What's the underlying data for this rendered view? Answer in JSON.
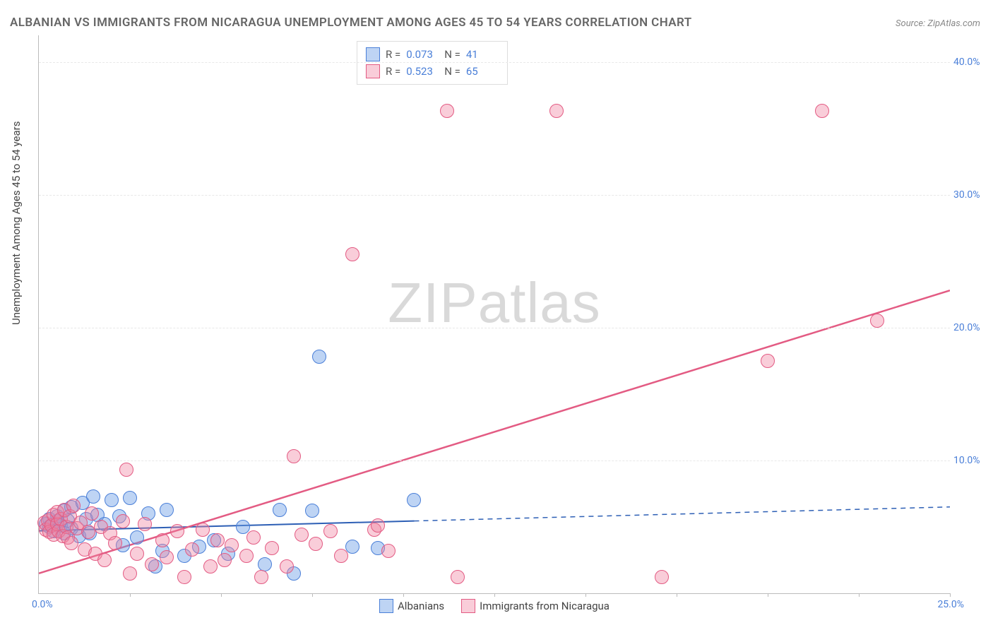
{
  "title": "ALBANIAN VS IMMIGRANTS FROM NICARAGUA UNEMPLOYMENT AMONG AGES 45 TO 54 YEARS CORRELATION CHART",
  "source": "Source: ZipAtlas.com",
  "ylabel": "Unemployment Among Ages 45 to 54 years",
  "watermark": "ZIPatlas",
  "chart": {
    "type": "scatter",
    "xlim": [
      0,
      25
    ],
    "ylim": [
      0,
      42
    ],
    "yticks": [
      10,
      20,
      30,
      40
    ],
    "ytick_labels": [
      "10.0%",
      "20.0%",
      "30.0%",
      "40.0%"
    ],
    "xticks": [
      2.5,
      5,
      7.5,
      10,
      12.5,
      15,
      17.5,
      20,
      22.5,
      25
    ],
    "x_origin_label": "0.0%",
    "x_max_label": "25.0%",
    "grid_color": "#e8e8e8",
    "axis_color": "#bbbbbb",
    "tick_label_color": "#4a7fd8",
    "background_color": "#ffffff"
  },
  "series": [
    {
      "name": "Albanians",
      "fill": "rgba(110,160,230,0.45)",
      "stroke": "#4a7fd8",
      "R": "0.073",
      "N": "41",
      "trend": {
        "y_at_x0": 4.7,
        "y_at_xmax": 6.5,
        "solid_until_x": 10.3,
        "color": "#2d5fb5",
        "width": 2
      },
      "marker_r": 9,
      "points": [
        [
          0.2,
          5.2
        ],
        [
          0.3,
          5.0
        ],
        [
          0.3,
          5.6
        ],
        [
          0.4,
          4.7
        ],
        [
          0.5,
          5.4
        ],
        [
          0.5,
          5.8
        ],
        [
          0.6,
          5.1
        ],
        [
          0.7,
          6.2
        ],
        [
          0.7,
          4.5
        ],
        [
          0.8,
          5.5
        ],
        [
          0.9,
          6.5
        ],
        [
          0.9,
          4.9
        ],
        [
          1.1,
          4.3
        ],
        [
          1.2,
          6.8
        ],
        [
          1.3,
          5.6
        ],
        [
          1.4,
          4.5
        ],
        [
          1.5,
          7.3
        ],
        [
          1.6,
          5.9
        ],
        [
          1.8,
          5.2
        ],
        [
          2.0,
          7.0
        ],
        [
          2.2,
          5.8
        ],
        [
          2.3,
          3.6
        ],
        [
          2.5,
          7.2
        ],
        [
          2.7,
          4.2
        ],
        [
          3.0,
          6.0
        ],
        [
          3.2,
          2.0
        ],
        [
          3.4,
          3.2
        ],
        [
          3.5,
          6.3
        ],
        [
          4.0,
          2.8
        ],
        [
          4.4,
          3.5
        ],
        [
          4.8,
          4.0
        ],
        [
          5.2,
          3.0
        ],
        [
          5.6,
          5.0
        ],
        [
          6.2,
          2.2
        ],
        [
          6.6,
          6.3
        ],
        [
          7.0,
          1.5
        ],
        [
          7.5,
          6.2
        ],
        [
          7.7,
          17.8
        ],
        [
          8.6,
          3.5
        ],
        [
          9.3,
          3.4
        ],
        [
          10.3,
          7.0
        ]
      ]
    },
    {
      "name": "Immigrants from Nicaragua",
      "fill": "rgba(240,130,160,0.40)",
      "stroke": "#e35b83",
      "R": "0.523",
      "N": "65",
      "trend": {
        "y_at_x0": 1.5,
        "y_at_xmax": 22.8,
        "solid_until_x": 25,
        "color": "#e35b83",
        "width": 2.5
      },
      "marker_r": 9,
      "points": [
        [
          0.15,
          5.3
        ],
        [
          0.2,
          4.8
        ],
        [
          0.25,
          5.5
        ],
        [
          0.3,
          4.6
        ],
        [
          0.35,
          5.1
        ],
        [
          0.4,
          5.9
        ],
        [
          0.4,
          4.4
        ],
        [
          0.5,
          5.2
        ],
        [
          0.5,
          6.1
        ],
        [
          0.55,
          4.7
        ],
        [
          0.6,
          5.6
        ],
        [
          0.65,
          4.3
        ],
        [
          0.7,
          6.3
        ],
        [
          0.75,
          5.0
        ],
        [
          0.8,
          4.2
        ],
        [
          0.85,
          5.8
        ],
        [
          0.9,
          3.8
        ],
        [
          0.95,
          6.6
        ],
        [
          1.05,
          4.9
        ],
        [
          1.15,
          5.3
        ],
        [
          1.25,
          3.3
        ],
        [
          1.35,
          4.6
        ],
        [
          1.45,
          6.0
        ],
        [
          1.55,
          3.0
        ],
        [
          1.7,
          5.0
        ],
        [
          1.8,
          2.5
        ],
        [
          1.95,
          4.5
        ],
        [
          2.1,
          3.8
        ],
        [
          2.3,
          5.4
        ],
        [
          2.4,
          9.3
        ],
        [
          2.5,
          1.5
        ],
        [
          2.7,
          3.0
        ],
        [
          2.9,
          5.2
        ],
        [
          3.1,
          2.2
        ],
        [
          3.4,
          4.0
        ],
        [
          3.5,
          2.7
        ],
        [
          3.8,
          4.7
        ],
        [
          4.0,
          1.2
        ],
        [
          4.2,
          3.3
        ],
        [
          4.5,
          4.8
        ],
        [
          4.7,
          2.0
        ],
        [
          4.9,
          4.0
        ],
        [
          5.1,
          2.5
        ],
        [
          5.3,
          3.6
        ],
        [
          5.7,
          2.8
        ],
        [
          5.9,
          4.2
        ],
        [
          6.1,
          1.2
        ],
        [
          6.4,
          3.4
        ],
        [
          6.8,
          2.0
        ],
        [
          7.0,
          10.3
        ],
        [
          7.2,
          4.4
        ],
        [
          7.6,
          3.7
        ],
        [
          8.0,
          4.7
        ],
        [
          8.3,
          2.8
        ],
        [
          8.6,
          25.5
        ],
        [
          9.2,
          4.8
        ],
        [
          9.3,
          5.1
        ],
        [
          9.6,
          3.2
        ],
        [
          11.2,
          36.3
        ],
        [
          11.5,
          1.2
        ],
        [
          14.2,
          36.3
        ],
        [
          17.1,
          1.2
        ],
        [
          20.0,
          17.5
        ],
        [
          21.5,
          36.3
        ],
        [
          23.0,
          20.5
        ]
      ]
    }
  ],
  "stats_labels": {
    "R": "R =",
    "N": "N ="
  },
  "legend": {
    "series1_label": "Albanians",
    "series2_label": "Immigrants from Nicaragua"
  }
}
